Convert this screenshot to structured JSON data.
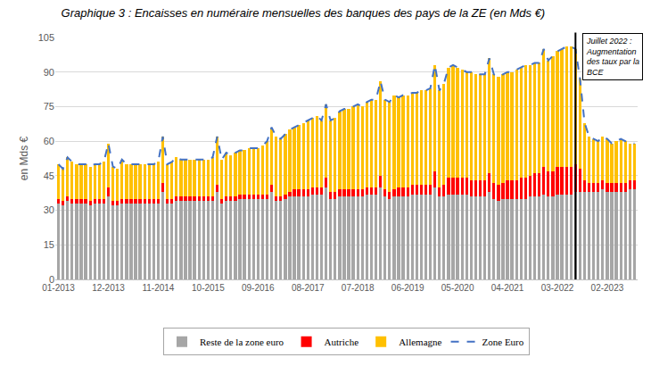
{
  "chart_data": {
    "type": "bar",
    "stacked": true,
    "title": "Graphique 3 : Encaisses en numéraire mensuelles des banques des pays de la ZE (en Mds €)",
    "ylabel": "en Mds €",
    "categories": [
      "01-2013",
      null,
      null,
      null,
      null,
      null,
      null,
      null,
      null,
      null,
      null,
      "12-2013",
      null,
      null,
      null,
      null,
      null,
      null,
      null,
      null,
      null,
      null,
      "11-2014",
      null,
      null,
      null,
      null,
      null,
      null,
      null,
      null,
      null,
      null,
      "10-2015",
      null,
      null,
      null,
      null,
      null,
      null,
      null,
      null,
      null,
      null,
      "09-2016",
      null,
      null,
      null,
      null,
      null,
      null,
      null,
      null,
      null,
      null,
      "08-2017",
      null,
      null,
      null,
      null,
      null,
      null,
      null,
      null,
      null,
      null,
      "07-2018",
      null,
      null,
      null,
      null,
      null,
      null,
      null,
      null,
      null,
      null,
      "06-2019",
      null,
      null,
      null,
      null,
      null,
      null,
      null,
      null,
      null,
      null,
      "05-2020",
      null,
      null,
      null,
      null,
      null,
      null,
      null,
      null,
      null,
      null,
      "04-2021",
      null,
      null,
      null,
      null,
      null,
      null,
      null,
      null,
      null,
      null,
      "03-2022",
      null,
      null,
      null,
      null,
      null,
      null,
      null,
      null,
      null,
      null,
      "02-2023",
      null,
      null,
      null,
      null,
      null,
      null
    ],
    "series": [
      {
        "name": "Reste de la zone euro",
        "type": "bar",
        "color": "#a6a6a6",
        "values": [
          33,
          32,
          34,
          33,
          33,
          33,
          33,
          32,
          33,
          33,
          33,
          36,
          32,
          32,
          33,
          33,
          33,
          33,
          33,
          33,
          33,
          33,
          33,
          38,
          33,
          33,
          34,
          34,
          34,
          34,
          34,
          34,
          34,
          34,
          34,
          38,
          33,
          34,
          34,
          34,
          35,
          35,
          35,
          35,
          35,
          35,
          35,
          38,
          34,
          34,
          35,
          36,
          36,
          36,
          36,
          36,
          37,
          37,
          37,
          40,
          35,
          35,
          36,
          36,
          36,
          36,
          36,
          36,
          37,
          37,
          37,
          40,
          36,
          35,
          36,
          36,
          36,
          36,
          37,
          37,
          37,
          37,
          37,
          40,
          36,
          36,
          37,
          37,
          37,
          37,
          37,
          36,
          36,
          36,
          36,
          38,
          35,
          34,
          35,
          35,
          35,
          35,
          35,
          35,
          36,
          36,
          36,
          37,
          36,
          36,
          37,
          37,
          37,
          37,
          38,
          38,
          38,
          38,
          38,
          38,
          39,
          38,
          38,
          38,
          38,
          38,
          39,
          39
        ]
      },
      {
        "name": "Autriche",
        "type": "bar",
        "color": "#ff0000",
        "values": [
          2,
          2,
          2,
          2,
          2,
          2,
          2,
          2,
          2,
          2,
          2,
          4,
          2,
          2,
          2,
          2,
          2,
          2,
          2,
          2,
          2,
          2,
          2,
          4,
          2,
          2,
          2,
          2,
          2,
          2,
          2,
          2,
          2,
          2,
          2,
          3,
          2,
          2,
          2,
          2,
          2,
          2,
          2,
          2,
          2,
          2,
          2,
          3,
          2,
          2,
          2,
          2,
          3,
          3,
          3,
          3,
          3,
          3,
          3,
          4,
          3,
          3,
          3,
          3,
          3,
          3,
          3,
          3,
          3,
          3,
          3,
          5,
          3,
          3,
          3,
          4,
          4,
          4,
          4,
          4,
          4,
          4,
          4,
          7,
          4,
          5,
          7,
          7,
          7,
          7,
          7,
          7,
          7,
          7,
          7,
          8,
          7,
          7,
          7,
          8,
          8,
          8,
          9,
          9,
          9,
          10,
          10,
          12,
          11,
          11,
          12,
          12,
          12,
          12,
          12,
          10,
          5,
          4,
          4,
          4,
          4,
          4,
          4,
          4,
          4,
          4,
          4,
          4
        ]
      },
      {
        "name": "Allemagne",
        "type": "bar",
        "color": "#ffc000",
        "values": [
          15,
          14,
          17,
          16,
          15,
          15,
          15,
          15,
          15,
          15,
          16,
          19,
          15,
          14,
          17,
          15,
          15,
          15,
          15,
          15,
          15,
          15,
          16,
          20,
          15,
          16,
          17,
          16,
          16,
          16,
          16,
          16,
          16,
          16,
          17,
          21,
          17,
          19,
          18,
          19,
          19,
          19,
          20,
          20,
          20,
          21,
          23,
          25,
          26,
          25,
          26,
          27,
          27,
          28,
          29,
          30,
          30,
          31,
          29,
          32,
          31,
          32,
          34,
          35,
          35,
          36,
          37,
          36,
          37,
          38,
          38,
          41,
          39,
          39,
          41,
          39,
          40,
          40,
          40,
          40,
          41,
          41,
          42,
          46,
          42,
          44,
          48,
          49,
          48,
          47,
          46,
          47,
          46,
          46,
          46,
          50,
          47,
          47,
          47,
          47,
          47,
          48,
          48,
          49,
          48,
          48,
          48,
          51,
          48,
          50,
          50,
          51,
          52,
          52,
          50,
          39,
          25,
          20,
          19,
          18,
          19,
          19,
          17,
          18,
          19,
          18,
          16,
          16
        ]
      },
      {
        "name": "Zone Euro",
        "type": "line",
        "line_style": "dashed",
        "color": "#4472c4",
        "values": [
          50,
          48,
          53,
          51,
          50,
          50,
          50,
          49,
          50,
          50,
          51,
          59,
          49,
          48,
          52,
          50,
          50,
          50,
          50,
          50,
          50,
          50,
          51,
          62,
          50,
          51,
          53,
          52,
          52,
          52,
          52,
          52,
          52,
          52,
          53,
          62,
          52,
          55,
          54,
          55,
          56,
          56,
          57,
          57,
          57,
          58,
          60,
          66,
          62,
          61,
          63,
          65,
          66,
          67,
          68,
          69,
          70,
          71,
          69,
          76,
          69,
          70,
          73,
          74,
          74,
          75,
          76,
          75,
          77,
          78,
          78,
          86,
          78,
          77,
          80,
          79,
          80,
          80,
          81,
          81,
          82,
          82,
          83,
          93,
          82,
          85,
          92,
          93,
          92,
          91,
          90,
          90,
          89,
          89,
          89,
          96,
          89,
          88,
          89,
          90,
          90,
          91,
          92,
          93,
          93,
          94,
          94,
          100,
          95,
          97,
          99,
          100,
          101,
          101,
          100,
          87,
          68,
          62,
          61,
          60,
          62,
          61,
          59,
          60,
          61,
          60,
          59,
          59
        ]
      }
    ],
    "ylim": [
      0,
      105
    ],
    "yticks": [
      0,
      15,
      30,
      45,
      60,
      75,
      90,
      105
    ],
    "grid": true,
    "legend": "bottom",
    "annotations": [
      {
        "text": "Juillet 2022 :\nAugmentation\ndes taux par la\nBCE",
        "category_index": 114
      }
    ]
  }
}
